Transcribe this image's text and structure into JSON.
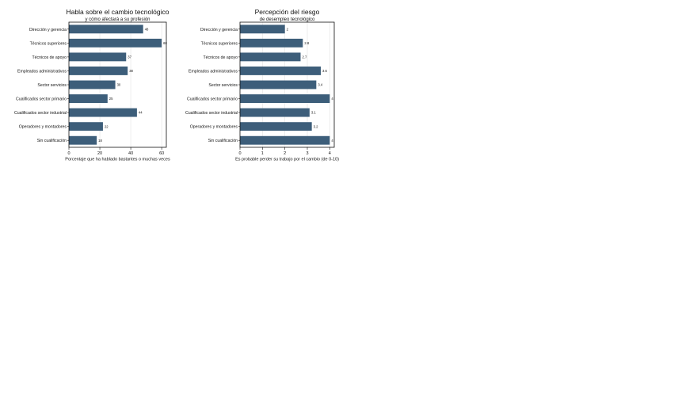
{
  "chart_data": [
    {
      "type": "bar",
      "orientation": "horizontal",
      "title": "Habla sobre el cambio tecnológico",
      "subtitle": "y cómo afectará a su profesión",
      "xlabel": "Porcentaje que ha hablado bastantes o muchas veces",
      "ylabel": "",
      "categories": [
        "Dirección y gerencia",
        "Técnicos superiores",
        "Técnicos de apoyo",
        "Empleados administrativos",
        "Sector servicios",
        "Cualificados sector primario",
        "Cualificados sector industrial",
        "Operadores y montadores",
        "Sin cualificación"
      ],
      "values": [
        48,
        60,
        37,
        38,
        30,
        25,
        44,
        22,
        18
      ],
      "value_labels": [
        "48",
        "60",
        "37",
        "38",
        "30",
        "25",
        "44",
        "22",
        "18"
      ],
      "xlim": [
        0,
        63
      ],
      "xticks": [
        0,
        20,
        40,
        60
      ],
      "xtick_labels": [
        "0",
        "20",
        "40",
        "60"
      ],
      "grid": true,
      "bar_color": "#3d5e7a"
    },
    {
      "type": "bar",
      "orientation": "horizontal",
      "title": "Percepción del riesgo",
      "subtitle": "de desempleo tecnológico",
      "xlabel": "Es probable perder su trabajo por el cambio (de 0-10)",
      "ylabel": "",
      "categories": [
        "Dirección y gerencia",
        "Técnicos superiores",
        "Técnicos de apoyo",
        "Empleados administrativos",
        "Sector servicios",
        "Cualificados sector primario",
        "Cualificados sector industrial",
        "Operadores y montadores",
        "Sin cualificación"
      ],
      "values": [
        2,
        2.8,
        2.7,
        3.6,
        3.4,
        4,
        3.1,
        3.2,
        4
      ],
      "value_labels": [
        "2",
        "2.8",
        "2.7",
        "3.6",
        "3.4",
        "4",
        "3.1",
        "3.2",
        "4"
      ],
      "xlim": [
        0,
        4.2
      ],
      "xticks": [
        0,
        1,
        2,
        3,
        4
      ],
      "xtick_labels": [
        "0",
        "1",
        "2",
        "3",
        "4"
      ],
      "grid": true,
      "bar_color": "#3d5e7a"
    }
  ]
}
